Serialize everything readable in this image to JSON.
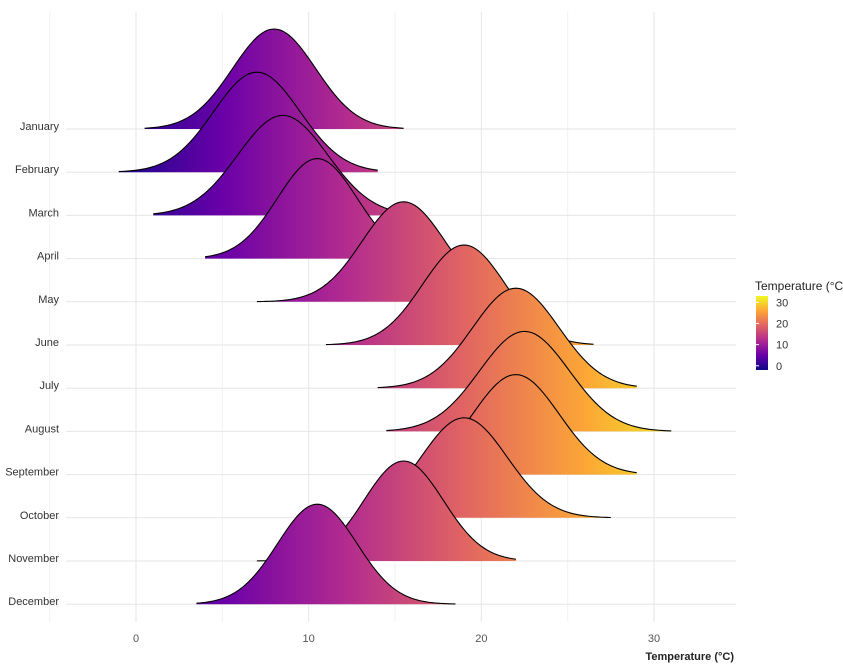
{
  "chart_data": {
    "type": "ridgeline",
    "xlabel": "Temperature (°C)",
    "ylabel": "",
    "xlim": [
      -8,
      35
    ],
    "xticks": [
      0,
      10,
      20,
      30
    ],
    "grid": true,
    "legend": {
      "title": "Temperature (°C)",
      "position": "right",
      "ticks": [
        0,
        10,
        20,
        30
      ],
      "range": [
        -2,
        33
      ],
      "colors": [
        "#0d0887",
        "#6a00a8",
        "#b12a90",
        "#e16462",
        "#fca636",
        "#f0f921"
      ]
    },
    "series": [
      {
        "name": "January",
        "min": 0.5,
        "max": 15.5,
        "peak": 8.0,
        "spread": 2.4
      },
      {
        "name": "February",
        "min": -1.0,
        "max": 14.0,
        "peak": 7.0,
        "spread": 2.5
      },
      {
        "name": "March",
        "min": 1.0,
        "max": 15.5,
        "peak": 8.5,
        "spread": 2.6
      },
      {
        "name": "April",
        "min": 4.0,
        "max": 17.0,
        "peak": 10.5,
        "spread": 2.3
      },
      {
        "name": "May",
        "min": 7.0,
        "max": 20.5,
        "peak": 15.5,
        "spread": 2.4
      },
      {
        "name": "June",
        "min": 11.0,
        "max": 26.5,
        "peak": 19.0,
        "spread": 2.4
      },
      {
        "name": "July",
        "min": 14.0,
        "max": 29.0,
        "peak": 22.0,
        "spread": 2.5
      },
      {
        "name": "August",
        "min": 14.5,
        "max": 31.0,
        "peak": 22.5,
        "spread": 2.6
      },
      {
        "name": "September",
        "min": 16.0,
        "max": 29.0,
        "peak": 22.0,
        "spread": 2.5
      },
      {
        "name": "October",
        "min": 14.0,
        "max": 27.5,
        "peak": 19.0,
        "spread": 2.5
      },
      {
        "name": "November",
        "min": 7.0,
        "max": 22.0,
        "peak": 15.5,
        "spread": 2.3
      },
      {
        "name": "December",
        "min": 3.5,
        "max": 18.5,
        "peak": 10.5,
        "spread": 2.3
      }
    ]
  }
}
